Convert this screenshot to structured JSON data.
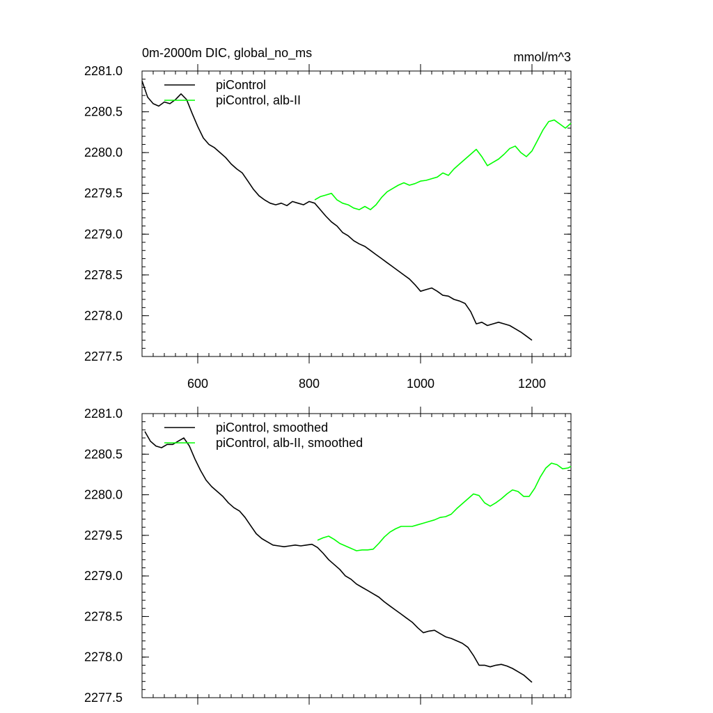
{
  "chart_data": [
    {
      "type": "line",
      "title": "0m-2000m DIC, global_no_ms",
      "units": "mmol/m^3",
      "xlim": [
        500,
        1270
      ],
      "ylim": [
        2277.5,
        2281.0
      ],
      "x_ticks": [
        600,
        800,
        1000,
        1200
      ],
      "x_tick_labels": [
        "600",
        "800",
        "1000",
        "1200"
      ],
      "y_ticks": [
        2277.5,
        2278.0,
        2278.5,
        2279.0,
        2279.5,
        2280.0,
        2280.5,
        2281.0
      ],
      "y_tick_labels": [
        "2277.5",
        "2278.0",
        "2278.5",
        "2279.0",
        "2279.5",
        "2280.0",
        "2280.5",
        "2281.0"
      ],
      "legend_position": "top-left",
      "series": [
        {
          "name": "piControl",
          "color": "#000000",
          "x": [
            500,
            510,
            520,
            530,
            540,
            550,
            560,
            570,
            580,
            590,
            600,
            610,
            620,
            630,
            640,
            650,
            660,
            670,
            680,
            690,
            700,
            710,
            720,
            730,
            740,
            750,
            760,
            770,
            780,
            790,
            800,
            810,
            820,
            830,
            840,
            850,
            860,
            870,
            880,
            890,
            900,
            910,
            920,
            930,
            940,
            950,
            960,
            970,
            980,
            990,
            1000,
            1010,
            1020,
            1030,
            1040,
            1050,
            1060,
            1070,
            1080,
            1090,
            1100,
            1110,
            1120,
            1130,
            1140,
            1150,
            1160,
            1170,
            1180,
            1190,
            1200
          ],
          "y": [
            2280.88,
            2280.68,
            2280.6,
            2280.57,
            2280.62,
            2280.6,
            2280.65,
            2280.72,
            2280.65,
            2280.48,
            2280.32,
            2280.18,
            2280.1,
            2280.06,
            2280.0,
            2279.94,
            2279.86,
            2279.8,
            2279.75,
            2279.65,
            2279.55,
            2279.47,
            2279.42,
            2279.38,
            2279.36,
            2279.38,
            2279.35,
            2279.4,
            2279.38,
            2279.36,
            2279.4,
            2279.38,
            2279.3,
            2279.22,
            2279.15,
            2279.1,
            2279.02,
            2278.98,
            2278.92,
            2278.88,
            2278.85,
            2278.8,
            2278.75,
            2278.7,
            2278.65,
            2278.6,
            2278.55,
            2278.5,
            2278.45,
            2278.38,
            2278.3,
            2278.32,
            2278.34,
            2278.3,
            2278.25,
            2278.24,
            2278.2,
            2278.18,
            2278.15,
            2278.05,
            2277.9,
            2277.92,
            2277.88,
            2277.9,
            2277.92,
            2277.9,
            2277.88,
            2277.84,
            2277.8,
            2277.75,
            2277.7
          ]
        },
        {
          "name": "piControl, alb-II",
          "color": "#00ff00",
          "x": [
            810,
            820,
            830,
            840,
            850,
            860,
            870,
            880,
            890,
            900,
            910,
            920,
            930,
            940,
            950,
            960,
            970,
            980,
            990,
            1000,
            1010,
            1020,
            1030,
            1040,
            1050,
            1060,
            1070,
            1080,
            1090,
            1100,
            1110,
            1120,
            1130,
            1140,
            1150,
            1160,
            1170,
            1180,
            1190,
            1200,
            1210,
            1220,
            1230,
            1240,
            1250,
            1260,
            1270
          ],
          "y": [
            2279.42,
            2279.46,
            2279.48,
            2279.5,
            2279.42,
            2279.38,
            2279.36,
            2279.32,
            2279.3,
            2279.34,
            2279.3,
            2279.36,
            2279.45,
            2279.52,
            2279.56,
            2279.6,
            2279.63,
            2279.6,
            2279.62,
            2279.65,
            2279.66,
            2279.68,
            2279.7,
            2279.75,
            2279.72,
            2279.8,
            2279.86,
            2279.92,
            2279.98,
            2280.04,
            2279.95,
            2279.84,
            2279.88,
            2279.92,
            2279.98,
            2280.05,
            2280.08,
            2280.0,
            2279.95,
            2280.02,
            2280.15,
            2280.28,
            2280.38,
            2280.4,
            2280.35,
            2280.3,
            2280.36
          ]
        }
      ]
    },
    {
      "type": "line",
      "title": "",
      "units": "",
      "xlim": [
        500,
        1270
      ],
      "ylim": [
        2277.5,
        2281.0
      ],
      "x_ticks": [
        600,
        800,
        1000,
        1200
      ],
      "x_tick_labels": [],
      "y_ticks": [
        2277.5,
        2278.0,
        2278.5,
        2279.0,
        2279.5,
        2280.0,
        2280.5,
        2281.0
      ],
      "y_tick_labels": [
        "2277.5",
        "2278.0",
        "2278.5",
        "2279.0",
        "2279.5",
        "2280.0",
        "2280.5",
        "2281.0"
      ],
      "legend_position": "top-left",
      "series": [
        {
          "name": "piControl, smoothed",
          "color": "#000000",
          "x": [
            505,
            515,
            525,
            535,
            545,
            555,
            565,
            575,
            585,
            595,
            605,
            615,
            625,
            635,
            645,
            655,
            665,
            675,
            685,
            695,
            705,
            715,
            725,
            735,
            745,
            755,
            765,
            775,
            785,
            795,
            805,
            815,
            825,
            835,
            845,
            855,
            865,
            875,
            885,
            895,
            905,
            915,
            925,
            935,
            945,
            955,
            965,
            975,
            985,
            995,
            1005,
            1015,
            1025,
            1035,
            1045,
            1055,
            1065,
            1075,
            1085,
            1095,
            1105,
            1115,
            1125,
            1135,
            1145,
            1155,
            1165,
            1175,
            1185,
            1195,
            1200
          ],
          "y": [
            2280.78,
            2280.66,
            2280.6,
            2280.58,
            2280.62,
            2280.62,
            2280.66,
            2280.7,
            2280.6,
            2280.44,
            2280.3,
            2280.18,
            2280.1,
            2280.04,
            2279.98,
            2279.9,
            2279.84,
            2279.8,
            2279.72,
            2279.62,
            2279.52,
            2279.46,
            2279.42,
            2279.38,
            2279.37,
            2279.36,
            2279.37,
            2279.38,
            2279.37,
            2279.38,
            2279.39,
            2279.35,
            2279.28,
            2279.2,
            2279.14,
            2279.08,
            2279.0,
            2278.96,
            2278.9,
            2278.86,
            2278.82,
            2278.78,
            2278.74,
            2278.68,
            2278.63,
            2278.58,
            2278.53,
            2278.48,
            2278.43,
            2278.36,
            2278.3,
            2278.32,
            2278.33,
            2278.29,
            2278.25,
            2278.23,
            2278.2,
            2278.17,
            2278.12,
            2278.02,
            2277.9,
            2277.9,
            2277.88,
            2277.9,
            2277.91,
            2277.89,
            2277.86,
            2277.82,
            2277.78,
            2277.72,
            2277.69
          ]
        },
        {
          "name": "piControl, alb-II, smoothed",
          "color": "#00ff00",
          "x": [
            815,
            825,
            835,
            845,
            855,
            865,
            875,
            885,
            895,
            905,
            915,
            925,
            935,
            945,
            955,
            965,
            975,
            985,
            995,
            1005,
            1015,
            1025,
            1035,
            1045,
            1055,
            1065,
            1075,
            1085,
            1095,
            1105,
            1115,
            1125,
            1135,
            1145,
            1155,
            1165,
            1175,
            1185,
            1195,
            1205,
            1215,
            1225,
            1235,
            1245,
            1255,
            1265,
            1270
          ],
          "y": [
            2279.44,
            2279.47,
            2279.49,
            2279.45,
            2279.4,
            2279.37,
            2279.34,
            2279.31,
            2279.32,
            2279.32,
            2279.33,
            2279.4,
            2279.48,
            2279.54,
            2279.58,
            2279.61,
            2279.61,
            2279.61,
            2279.63,
            2279.65,
            2279.67,
            2279.69,
            2279.72,
            2279.73,
            2279.76,
            2279.83,
            2279.89,
            2279.95,
            2280.01,
            2279.99,
            2279.9,
            2279.86,
            2279.9,
            2279.95,
            2280.01,
            2280.06,
            2280.04,
            2279.98,
            2279.98,
            2280.08,
            2280.22,
            2280.33,
            2280.39,
            2280.37,
            2280.32,
            2280.33,
            2280.35
          ]
        }
      ]
    }
  ]
}
